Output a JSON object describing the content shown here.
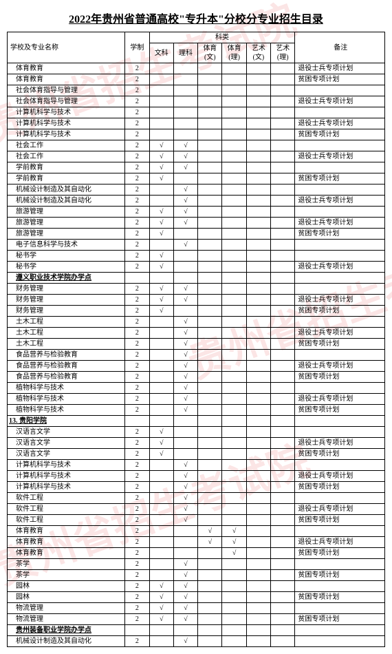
{
  "title": "2022年贵州省普通高校\"专升本\"分校分专业招生目录",
  "watermark_text": "贵州省招生考试院",
  "colors": {
    "border": "#000000",
    "watermark": "rgba(220,40,40,0.12)",
    "background": "#ffffff",
    "text": "#000000"
  },
  "header": {
    "col_name": "学校及专业名称",
    "col_xz": "学制",
    "col_group": "科类",
    "col_wk": "文科",
    "col_lk": "理科",
    "col_tyw": "体育(文)",
    "col_tyl": "体育(理)",
    "col_ysw": "艺术(文)",
    "col_ysl": "艺术(理)",
    "col_bz": "备注"
  },
  "rows": [
    {
      "name": "体育教育",
      "xz": "2",
      "wk": "",
      "lk": "",
      "tyw": "",
      "tyl": "",
      "ysw": "",
      "ysl": "",
      "bz": "退役士兵专项计划",
      "indent": 1
    },
    {
      "name": "体育教育",
      "xz": "2",
      "wk": "",
      "lk": "",
      "tyw": "",
      "tyl": "",
      "ysw": "",
      "ysl": "",
      "bz": "贫困专项计划",
      "indent": 1
    },
    {
      "name": "社会体育指导与管理",
      "xz": "2",
      "wk": "",
      "lk": "",
      "tyw": "",
      "tyl": "",
      "ysw": "",
      "ysl": "",
      "bz": "",
      "indent": 1
    },
    {
      "name": "社会体育指导与管理",
      "xz": "2",
      "wk": "",
      "lk": "",
      "tyw": "",
      "tyl": "",
      "ysw": "",
      "ysl": "",
      "bz": "退役士兵专项计划",
      "indent": 1
    },
    {
      "name": "计算机科学与技术",
      "xz": "2",
      "wk": "",
      "lk": "",
      "tyw": "",
      "tyl": "",
      "ysw": "",
      "ysl": "",
      "bz": "",
      "indent": 1
    },
    {
      "name": "计算机科学与技术",
      "xz": "2",
      "wk": "",
      "lk": "",
      "tyw": "",
      "tyl": "",
      "ysw": "",
      "ysl": "",
      "bz": "退役士兵专项计划",
      "indent": 1
    },
    {
      "name": "计算机科学与技术",
      "xz": "2",
      "wk": "",
      "lk": "",
      "tyw": "",
      "tyl": "",
      "ysw": "",
      "ysl": "",
      "bz": "贫困专项计划",
      "indent": 1
    },
    {
      "name": "社会工作",
      "xz": "2",
      "wk": "√",
      "lk": "√",
      "tyw": "",
      "tyl": "",
      "ysw": "",
      "ysl": "",
      "bz": "",
      "indent": 1
    },
    {
      "name": "社会工作",
      "xz": "2",
      "wk": "√",
      "lk": "√",
      "tyw": "",
      "tyl": "",
      "ysw": "",
      "ysl": "",
      "bz": "退役士兵专项计划",
      "indent": 1
    },
    {
      "name": "学前教育",
      "xz": "2",
      "wk": "√",
      "lk": "√",
      "tyw": "",
      "tyl": "",
      "ysw": "",
      "ysl": "",
      "bz": "",
      "indent": 1
    },
    {
      "name": "学前教育",
      "xz": "2",
      "wk": "√",
      "lk": "",
      "tyw": "",
      "tyl": "",
      "ysw": "",
      "ysl": "",
      "bz": "贫困专项计划",
      "indent": 1
    },
    {
      "name": "机械设计制造及其自动化",
      "xz": "2",
      "wk": "",
      "lk": "√",
      "tyw": "",
      "tyl": "",
      "ysw": "",
      "ysl": "",
      "bz": "",
      "indent": 1
    },
    {
      "name": "机械设计制造及其自动化",
      "xz": "2",
      "wk": "",
      "lk": "√",
      "tyw": "",
      "tyl": "",
      "ysw": "",
      "ysl": "",
      "bz": "退役士兵专项计划",
      "indent": 1
    },
    {
      "name": "旅游管理",
      "xz": "2",
      "wk": "√",
      "lk": "√",
      "tyw": "",
      "tyl": "",
      "ysw": "",
      "ysl": "",
      "bz": "",
      "indent": 1
    },
    {
      "name": "旅游管理",
      "xz": "2",
      "wk": "√",
      "lk": "√",
      "tyw": "",
      "tyl": "",
      "ysw": "",
      "ysl": "",
      "bz": "退役士兵专项计划",
      "indent": 1
    },
    {
      "name": "旅游管理",
      "xz": "2",
      "wk": "√",
      "lk": "",
      "tyw": "",
      "tyl": "",
      "ysw": "",
      "ysl": "",
      "bz": "贫困专项计划",
      "indent": 1
    },
    {
      "name": "电子信息科学与技术",
      "xz": "2",
      "wk": "",
      "lk": "√",
      "tyw": "",
      "tyl": "",
      "ysw": "",
      "ysl": "",
      "bz": "",
      "indent": 1
    },
    {
      "name": "秘书学",
      "xz": "2",
      "wk": "√",
      "lk": "",
      "tyw": "",
      "tyl": "",
      "ysw": "",
      "ysl": "",
      "bz": "",
      "indent": 1
    },
    {
      "name": "秘书学",
      "xz": "2",
      "wk": "√",
      "lk": "",
      "tyw": "",
      "tyl": "",
      "ysw": "",
      "ysl": "",
      "bz": "退役士兵专项计划",
      "indent": 1
    },
    {
      "name": "遵义职业技术学院办学点",
      "xz": "",
      "wk": "",
      "lk": "",
      "tyw": "",
      "tyl": "",
      "ysw": "",
      "ysl": "",
      "bz": "",
      "bold": true,
      "indent": 1
    },
    {
      "name": "财务管理",
      "xz": "2",
      "wk": "√",
      "lk": "√",
      "tyw": "",
      "tyl": "",
      "ysw": "",
      "ysl": "",
      "bz": "",
      "indent": 1
    },
    {
      "name": "财务管理",
      "xz": "2",
      "wk": "√",
      "lk": "√",
      "tyw": "",
      "tyl": "",
      "ysw": "",
      "ysl": "",
      "bz": "退役士兵专项计划",
      "indent": 1
    },
    {
      "name": "财务管理",
      "xz": "2",
      "wk": "√",
      "lk": "",
      "tyw": "",
      "tyl": "",
      "ysw": "",
      "ysl": "",
      "bz": "贫困专项计划",
      "indent": 1
    },
    {
      "name": "土木工程",
      "xz": "2",
      "wk": "",
      "lk": "√",
      "tyw": "",
      "tyl": "",
      "ysw": "",
      "ysl": "",
      "bz": "",
      "indent": 1
    },
    {
      "name": "土木工程",
      "xz": "2",
      "wk": "",
      "lk": "√",
      "tyw": "",
      "tyl": "",
      "ysw": "",
      "ysl": "",
      "bz": "退役士兵专项计划",
      "indent": 1
    },
    {
      "name": "土木工程",
      "xz": "2",
      "wk": "",
      "lk": "√",
      "tyw": "",
      "tyl": "",
      "ysw": "",
      "ysl": "",
      "bz": "贫困专项计划",
      "indent": 1
    },
    {
      "name": "食品营养与检验教育",
      "xz": "2",
      "wk": "",
      "lk": "√",
      "tyw": "",
      "tyl": "",
      "ysw": "",
      "ysl": "",
      "bz": "",
      "indent": 1
    },
    {
      "name": "食品营养与检验教育",
      "xz": "2",
      "wk": "",
      "lk": "√",
      "tyw": "",
      "tyl": "",
      "ysw": "",
      "ysl": "",
      "bz": "退役士兵专项计划",
      "indent": 1
    },
    {
      "name": "食品营养与检验教育",
      "xz": "2",
      "wk": "",
      "lk": "√",
      "tyw": "",
      "tyl": "",
      "ysw": "",
      "ysl": "",
      "bz": "贫困专项计划",
      "indent": 1
    },
    {
      "name": "植物科学与技术",
      "xz": "2",
      "wk": "",
      "lk": "√",
      "tyw": "",
      "tyl": "",
      "ysw": "",
      "ysl": "",
      "bz": "",
      "indent": 1
    },
    {
      "name": "植物科学与技术",
      "xz": "2",
      "wk": "",
      "lk": "√",
      "tyw": "",
      "tyl": "",
      "ysw": "",
      "ysl": "",
      "bz": "退役士兵专项计划",
      "indent": 1
    },
    {
      "name": "植物科学与技术",
      "xz": "2",
      "wk": "",
      "lk": "√",
      "tyw": "",
      "tyl": "",
      "ysw": "",
      "ysl": "",
      "bz": "贫困专项计划",
      "indent": 1
    },
    {
      "name": "13. 贵阳学院",
      "xz": "",
      "wk": "",
      "lk": "",
      "tyw": "",
      "tyl": "",
      "ysw": "",
      "ysl": "",
      "bz": "",
      "school": true
    },
    {
      "name": "汉语言文学",
      "xz": "2",
      "wk": "√",
      "lk": "",
      "tyw": "",
      "tyl": "",
      "ysw": "",
      "ysl": "",
      "bz": "",
      "indent": 1
    },
    {
      "name": "汉语言文学",
      "xz": "2",
      "wk": "√",
      "lk": "",
      "tyw": "",
      "tyl": "",
      "ysw": "",
      "ysl": "",
      "bz": "退役士兵专项计划",
      "indent": 1
    },
    {
      "name": "汉语言文学",
      "xz": "2",
      "wk": "√",
      "lk": "",
      "tyw": "",
      "tyl": "",
      "ysw": "",
      "ysl": "",
      "bz": "贫困专项计划",
      "indent": 1
    },
    {
      "name": "计算机科学与技术",
      "xz": "2",
      "wk": "",
      "lk": "√",
      "tyw": "",
      "tyl": "",
      "ysw": "",
      "ysl": "",
      "bz": "",
      "indent": 1
    },
    {
      "name": "计算机科学与技术",
      "xz": "2",
      "wk": "",
      "lk": "√",
      "tyw": "",
      "tyl": "",
      "ysw": "",
      "ysl": "",
      "bz": "退役士兵专项计划",
      "indent": 1
    },
    {
      "name": "计算机科学与技术",
      "xz": "2",
      "wk": "",
      "lk": "√",
      "tyw": "",
      "tyl": "",
      "ysw": "",
      "ysl": "",
      "bz": "贫困专项计划",
      "indent": 1
    },
    {
      "name": "软件工程",
      "xz": "2",
      "wk": "",
      "lk": "√",
      "tyw": "",
      "tyl": "",
      "ysw": "",
      "ysl": "",
      "bz": "",
      "indent": 1
    },
    {
      "name": "软件工程",
      "xz": "2",
      "wk": "",
      "lk": "√",
      "tyw": "",
      "tyl": "",
      "ysw": "",
      "ysl": "",
      "bz": "退役士兵专项计划",
      "indent": 1
    },
    {
      "name": "软件工程",
      "xz": "2",
      "wk": "",
      "lk": "√",
      "tyw": "",
      "tyl": "",
      "ysw": "",
      "ysl": "",
      "bz": "贫困专项计划",
      "indent": 1
    },
    {
      "name": "体育教育",
      "xz": "2",
      "wk": "",
      "lk": "",
      "tyw": "√",
      "tyl": "√",
      "ysw": "",
      "ysl": "",
      "bz": "",
      "indent": 1
    },
    {
      "name": "体育教育",
      "xz": "2",
      "wk": "",
      "lk": "",
      "tyw": "√",
      "tyl": "√",
      "ysw": "",
      "ysl": "",
      "bz": "退役士兵专项计划",
      "indent": 1
    },
    {
      "name": "体育教育",
      "xz": "2",
      "wk": "",
      "lk": "",
      "tyw": "",
      "tyl": "√",
      "ysw": "",
      "ysl": "",
      "bz": "贫困专项计划",
      "indent": 1
    },
    {
      "name": "茶学",
      "xz": "2",
      "wk": "",
      "lk": "√",
      "tyw": "",
      "tyl": "",
      "ysw": "",
      "ysl": "",
      "bz": "",
      "indent": 1
    },
    {
      "name": "茶学",
      "xz": "2",
      "wk": "",
      "lk": "√",
      "tyw": "",
      "tyl": "",
      "ysw": "",
      "ysl": "",
      "bz": "贫困专项计划",
      "indent": 1
    },
    {
      "name": "园林",
      "xz": "2",
      "wk": "√",
      "lk": "√",
      "tyw": "",
      "tyl": "",
      "ysw": "",
      "ysl": "",
      "bz": "",
      "indent": 1
    },
    {
      "name": "园林",
      "xz": "2",
      "wk": "√",
      "lk": "√",
      "tyw": "",
      "tyl": "",
      "ysw": "",
      "ysl": "",
      "bz": "贫困专项计划",
      "indent": 1
    },
    {
      "name": "物流管理",
      "xz": "2",
      "wk": "√",
      "lk": "√",
      "tyw": "",
      "tyl": "",
      "ysw": "",
      "ysl": "",
      "bz": "",
      "indent": 1
    },
    {
      "name": "物流管理",
      "xz": "2",
      "wk": "√",
      "lk": "√",
      "tyw": "",
      "tyl": "",
      "ysw": "",
      "ysl": "",
      "bz": "贫困专项计划",
      "indent": 1
    },
    {
      "name": "贵州装备职业学院办学点",
      "xz": "",
      "wk": "",
      "lk": "",
      "tyw": "",
      "tyl": "",
      "ysw": "",
      "ysl": "",
      "bz": "",
      "bold": true,
      "indent": 1
    },
    {
      "name": "机械设计制造及其自动化",
      "xz": "2",
      "wk": "",
      "lk": "√",
      "tyw": "",
      "tyl": "",
      "ysw": "",
      "ysl": "",
      "bz": "",
      "indent": 1
    }
  ]
}
